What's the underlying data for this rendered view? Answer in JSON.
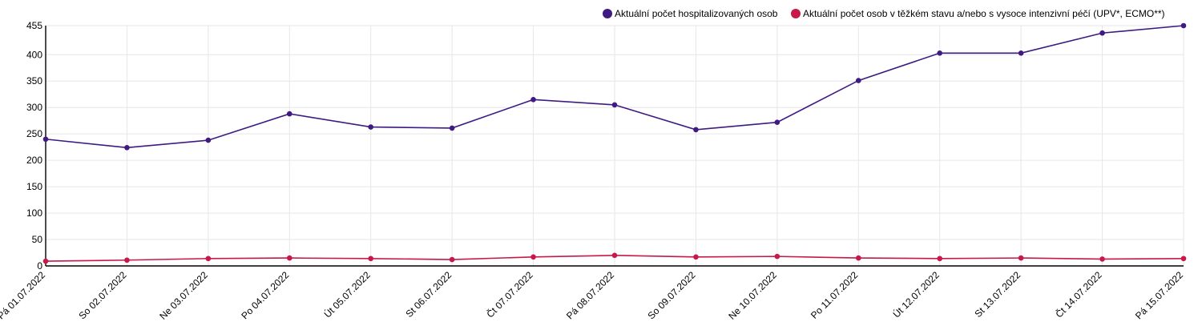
{
  "chart_data": {
    "type": "line",
    "categories": [
      "Pá 01.07.2022",
      "So 02.07.2022",
      "Ne 03.07.2022",
      "Po 04.07.2022",
      "Út 05.07.2022",
      "St 06.07.2022",
      "Čt 07.07.2022",
      "Pá 08.07.2022",
      "So 09.07.2022",
      "Ne 10.07.2022",
      "Po 11.07.2022",
      "Út 12.07.2022",
      "St 13.07.2022",
      "Čt 14.07.2022",
      "Pá 15.07.2022"
    ],
    "series": [
      {
        "name": "Aktuální počet hospitalizovaných osob",
        "color": "#3f1a82",
        "values": [
          240,
          224,
          238,
          288,
          263,
          261,
          315,
          305,
          258,
          272,
          351,
          403,
          403,
          441,
          455
        ]
      },
      {
        "name": "Aktuální počet osob v těžkém stavu a/nebo s vysoce intenzivní péčí (UPV*, ECMO**)",
        "color": "#c8184a",
        "values": [
          9,
          11,
          14,
          15,
          14,
          12,
          17,
          20,
          17,
          18,
          15,
          14,
          15,
          13,
          14
        ]
      }
    ],
    "y_ticks": [
      0,
      50,
      100,
      150,
      200,
      250,
      300,
      350,
      400,
      455
    ],
    "ylim": [
      0,
      455
    ],
    "grid": true,
    "legend_position": "top-right",
    "title": "",
    "xlabel": "",
    "ylabel": ""
  }
}
